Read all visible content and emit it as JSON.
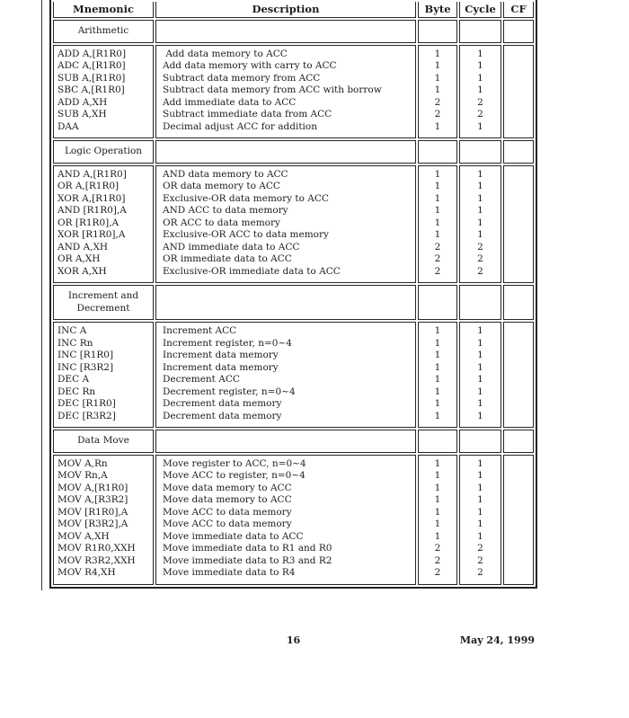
{
  "table": {
    "columns": [
      "Mnemonic",
      "Description",
      "Byte",
      "Cycle",
      "CF"
    ],
    "sections": [
      {
        "title": "Arithmetic",
        "rows": [
          {
            "mnemonic": "ADD A,[R1R0]",
            "description": " Add data memory to ACC",
            "byte": "1",
            "cycle": "1",
            "cf": ""
          },
          {
            "mnemonic": "ADC A,[R1R0]",
            "description": "Add data memory with carry to ACC",
            "byte": "1",
            "cycle": "1",
            "cf": ""
          },
          {
            "mnemonic": "SUB A,[R1R0]",
            "description": "Subtract data memory from ACC",
            "byte": "1",
            "cycle": "1",
            "cf": ""
          },
          {
            "mnemonic": "SBC A,[R1R0]",
            "description": "Subtract data memory from ACC with borrow",
            "byte": "1",
            "cycle": "1",
            "cf": ""
          },
          {
            "mnemonic": "ADD A,XH",
            "description": "Add immediate data to ACC",
            "byte": "2",
            "cycle": "2",
            "cf": ""
          },
          {
            "mnemonic": "SUB A,XH",
            "description": "Subtract immediate data from ACC",
            "byte": "2",
            "cycle": "2",
            "cf": ""
          },
          {
            "mnemonic": "DAA",
            "description": "Decimal adjust ACC for addition",
            "byte": "1",
            "cycle": "1",
            "cf": ""
          }
        ]
      },
      {
        "title": "Logic Operation",
        "rows": [
          {
            "mnemonic": "AND A,[R1R0]",
            "description": "AND data memory to ACC",
            "byte": "1",
            "cycle": "1",
            "cf": ""
          },
          {
            "mnemonic": "OR A,[R1R0]",
            "description": "OR data memory to ACC",
            "byte": "1",
            "cycle": "1",
            "cf": ""
          },
          {
            "mnemonic": "XOR A,[R1R0]",
            "description": "Exclusive-OR data memory to ACC",
            "byte": "1",
            "cycle": "1",
            "cf": ""
          },
          {
            "mnemonic": "AND [R1R0],A",
            "description": "AND ACC to data memory",
            "byte": "1",
            "cycle": "1",
            "cf": ""
          },
          {
            "mnemonic": "OR [R1R0],A",
            "description": "OR ACC to data memory",
            "byte": "1",
            "cycle": "1",
            "cf": ""
          },
          {
            "mnemonic": "XOR [R1R0],A",
            "description": "Exclusive-OR ACC to data memory",
            "byte": "1",
            "cycle": "1",
            "cf": ""
          },
          {
            "mnemonic": "AND A,XH",
            "description": "AND immediate data to ACC",
            "byte": "2",
            "cycle": "2",
            "cf": ""
          },
          {
            "mnemonic": "OR A,XH",
            "description": "OR immediate data to ACC",
            "byte": "2",
            "cycle": "2",
            "cf": ""
          },
          {
            "mnemonic": "XOR A,XH",
            "description": "Exclusive-OR immediate data to ACC",
            "byte": "2",
            "cycle": "2",
            "cf": ""
          }
        ]
      },
      {
        "title": "Increment and Decrement",
        "rows": [
          {
            "mnemonic": "INC A",
            "description": "Increment ACC",
            "byte": "1",
            "cycle": "1",
            "cf": ""
          },
          {
            "mnemonic": "INC Rn",
            "description": "Increment register, n=0~4",
            "byte": "1",
            "cycle": "1",
            "cf": ""
          },
          {
            "mnemonic": "INC [R1R0]",
            "description": "Increment data memory",
            "byte": "1",
            "cycle": "1",
            "cf": ""
          },
          {
            "mnemonic": "INC [R3R2]",
            "description": "Increment data memory",
            "byte": "1",
            "cycle": "1",
            "cf": ""
          },
          {
            "mnemonic": "DEC A",
            "description": "Decrement ACC",
            "byte": "1",
            "cycle": "1",
            "cf": ""
          },
          {
            "mnemonic": "DEC Rn",
            "description": "Decrement register, n=0~4",
            "byte": "1",
            "cycle": "1",
            "cf": ""
          },
          {
            "mnemonic": "DEC [R1R0]",
            "description": "Decrement data memory",
            "byte": "1",
            "cycle": "1",
            "cf": ""
          },
          {
            "mnemonic": "DEC [R3R2]",
            "description": "Decrement data memory",
            "byte": "1",
            "cycle": "1",
            "cf": ""
          }
        ]
      },
      {
        "title": "Data Move",
        "rows": [
          {
            "mnemonic": "MOV A,Rn",
            "description": "Move register to ACC, n=0~4",
            "byte": "1",
            "cycle": "1",
            "cf": ""
          },
          {
            "mnemonic": "MOV Rn,A",
            "description": "Move ACC to register, n=0~4",
            "byte": "1",
            "cycle": "1",
            "cf": ""
          },
          {
            "mnemonic": "MOV A,[R1R0]",
            "description": "Move data memory to ACC",
            "byte": "1",
            "cycle": "1",
            "cf": ""
          },
          {
            "mnemonic": "MOV A,[R3R2]",
            "description": "Move data memory to ACC",
            "byte": "1",
            "cycle": "1",
            "cf": ""
          },
          {
            "mnemonic": "MOV [R1R0],A",
            "description": "Move ACC to data memory",
            "byte": "1",
            "cycle": "1",
            "cf": ""
          },
          {
            "mnemonic": "MOV [R3R2],A",
            "description": "Move ACC to data memory",
            "byte": "1",
            "cycle": "1",
            "cf": ""
          },
          {
            "mnemonic": "MOV A,XH",
            "description": "Move immediate data to ACC",
            "byte": "1",
            "cycle": "1",
            "cf": ""
          },
          {
            "mnemonic": "MOV R1R0,XXH",
            "description": "Move immediate data to R1 and R0",
            "byte": "2",
            "cycle": "2",
            "cf": ""
          },
          {
            "mnemonic": "MOV R3R2,XXH",
            "description": "Move immediate data to R3 and R2",
            "byte": "2",
            "cycle": "2",
            "cf": ""
          },
          {
            "mnemonic": "MOV R4,XH",
            "description": "Move immediate data to R4",
            "byte": "2",
            "cycle": "2",
            "cf": ""
          }
        ]
      }
    ]
  },
  "footer": {
    "page_number": "16",
    "date": "May 24, 1999"
  },
  "colors": {
    "text": "#1c1c22",
    "border": "#26262a",
    "background": "#ffffff"
  }
}
